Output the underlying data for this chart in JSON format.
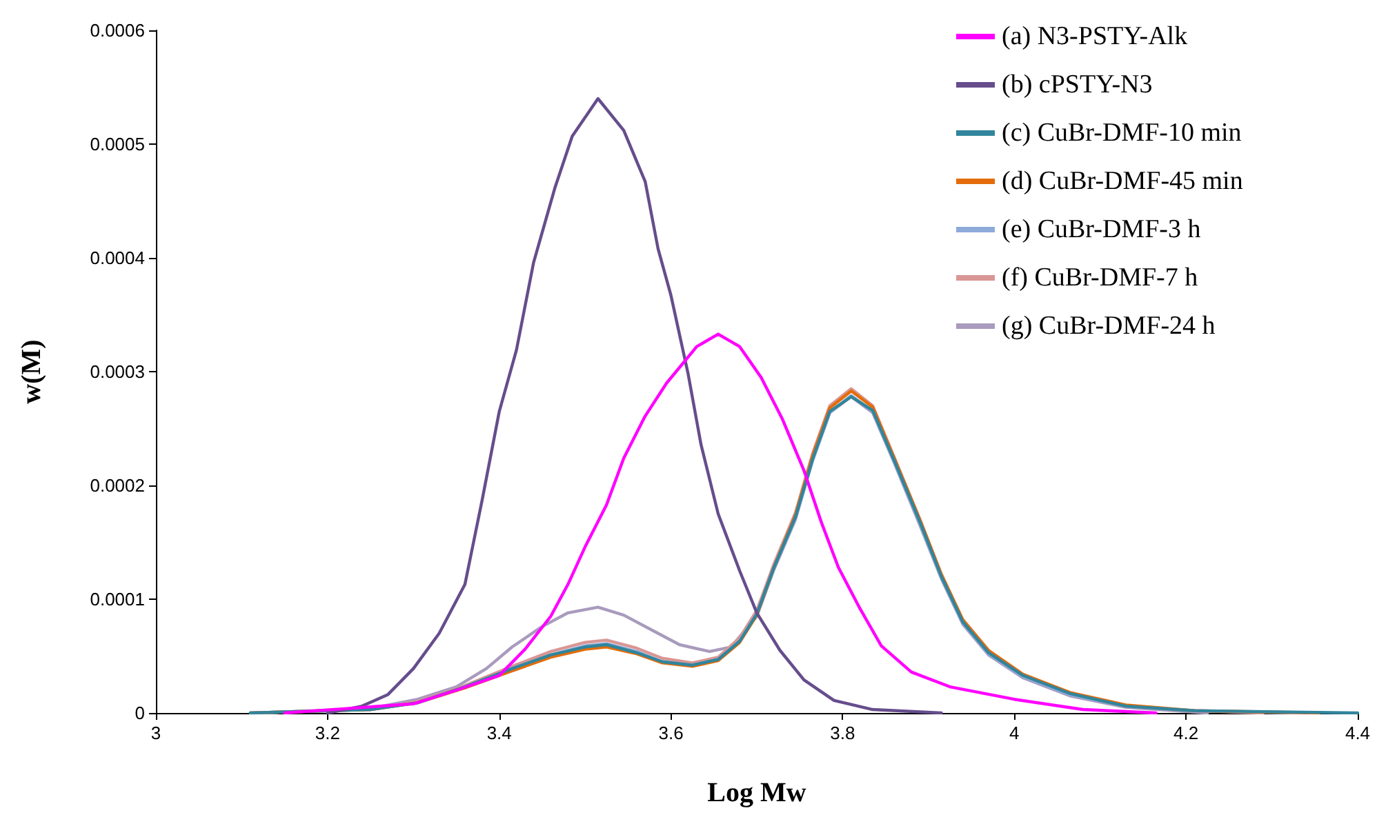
{
  "chart_data": {
    "type": "line",
    "xlabel": "Log Mw",
    "ylabel": "w(M)",
    "xlim": [
      3,
      4.4
    ],
    "xticks": [
      3,
      3.2,
      3.4,
      3.6,
      3.8,
      4,
      4.2,
      4.4
    ],
    "ylim": [
      0,
      0.0006
    ],
    "yticks": [
      0,
      0.0001,
      0.0002,
      0.0003,
      0.0004,
      0.0005,
      0.0006
    ],
    "grid": false,
    "legend": "top right",
    "marker": "none",
    "line_style": "solid",
    "series": [
      {
        "name": "(a) N3-PSTY-Alk",
        "color": "#ff00ff",
        "x": [
          3.15,
          3.3,
          3.35,
          3.4,
          3.43,
          3.46,
          3.48,
          3.5,
          3.525,
          3.545,
          3.57,
          3.595,
          3.63,
          3.655,
          3.68,
          3.705,
          3.73,
          3.755,
          3.775,
          3.795,
          3.82,
          3.845,
          3.88,
          3.925,
          4.0,
          4.08,
          4.165
        ],
        "values": [
          0,
          8e-06,
          2e-05,
          3.3e-05,
          5.6e-05,
          8.5e-05,
          0.000113,
          0.000146,
          0.000183,
          0.000224,
          0.000261,
          0.00029,
          0.000322,
          0.000333,
          0.000322,
          0.000295,
          0.000258,
          0.000213,
          0.000168,
          0.000128,
          9.2e-05,
          5.9e-05,
          3.6e-05,
          2.3e-05,
          1.2e-05,
          3e-06,
          0
        ]
      },
      {
        "name": "(b) cPSTY-N3",
        "color": "#664d8c",
        "x": [
          3.2,
          3.24,
          3.27,
          3.3,
          3.33,
          3.36,
          3.38,
          3.4,
          3.42,
          3.44,
          3.465,
          3.485,
          3.515,
          3.545,
          3.57,
          3.585,
          3.6,
          3.62,
          3.635,
          3.655,
          3.68,
          3.7,
          3.727,
          3.755,
          3.79,
          3.835,
          3.915
        ],
        "values": [
          0,
          6e-06,
          1.6e-05,
          3.9e-05,
          7e-05,
          0.000113,
          0.000187,
          0.000265,
          0.000319,
          0.000396,
          0.000462,
          0.000507,
          0.00054,
          0.000512,
          0.000467,
          0.000408,
          0.000367,
          0.000298,
          0.000236,
          0.000175,
          0.000125,
          8.8e-05,
          5.5e-05,
          2.9e-05,
          1.1e-05,
          3e-06,
          0
        ]
      },
      {
        "name": "(c) CuBr-DMF-10 min",
        "color": "#31859c",
        "x": [
          3.11,
          3.25,
          3.305,
          3.36,
          3.415,
          3.46,
          3.5,
          3.525,
          3.56,
          3.59,
          3.625,
          3.655,
          3.68,
          3.7,
          3.72,
          3.745,
          3.765,
          3.785,
          3.81,
          3.835,
          3.86,
          3.89,
          3.915,
          3.94,
          3.97,
          4.01,
          4.065,
          4.13,
          4.21,
          4.4
        ],
        "values": [
          0,
          3e-06,
          9e-06,
          2.3e-05,
          3.9e-05,
          5.1e-05,
          5.8e-05,
          6e-05,
          5.3e-05,
          4.5e-05,
          4.2e-05,
          4.7e-05,
          6.3e-05,
          8.7e-05,
          0.000128,
          0.000172,
          0.000223,
          0.000265,
          0.000278,
          0.000266,
          0.000222,
          0.000168,
          0.00012,
          8e-05,
          5.3e-05,
          3.3e-05,
          1.7e-05,
          6e-06,
          2e-06,
          0
        ]
      },
      {
        "name": "(d) CuBr-DMF-45 min",
        "color": "#e46c0a",
        "x": [
          3.11,
          3.25,
          3.305,
          3.36,
          3.415,
          3.46,
          3.5,
          3.525,
          3.56,
          3.59,
          3.625,
          3.655,
          3.68,
          3.7,
          3.72,
          3.745,
          3.765,
          3.785,
          3.81,
          3.835,
          3.86,
          3.89,
          3.915,
          3.94,
          3.97,
          4.01,
          4.065,
          4.13,
          4.21,
          4.355
        ],
        "values": [
          0,
          3e-06,
          9e-06,
          2.2e-05,
          3.7e-05,
          4.9e-05,
          5.6e-05,
          5.8e-05,
          5.2e-05,
          4.4e-05,
          4.1e-05,
          4.6e-05,
          6.2e-05,
          8.6e-05,
          0.000128,
          0.000174,
          0.000226,
          0.000268,
          0.000283,
          0.000269,
          0.000224,
          0.00017,
          0.000122,
          8.2e-05,
          5.5e-05,
          3.4e-05,
          1.8e-05,
          7e-06,
          2e-06,
          0
        ]
      },
      {
        "name": "(e) CuBr-DMF-3 h",
        "color": "#8eaadb",
        "x": [
          3.11,
          3.25,
          3.305,
          3.36,
          3.415,
          3.46,
          3.5,
          3.525,
          3.56,
          3.59,
          3.625,
          3.655,
          3.68,
          3.7,
          3.72,
          3.745,
          3.765,
          3.785,
          3.81,
          3.835,
          3.86,
          3.89,
          3.915,
          3.94,
          3.97,
          4.01,
          4.065,
          4.13,
          4.21,
          4.335
        ],
        "values": [
          0,
          3e-06,
          9e-06,
          2.3e-05,
          3.9e-05,
          5.1e-05,
          5.9e-05,
          6.1e-05,
          5.4e-05,
          4.5e-05,
          4.2e-05,
          4.7e-05,
          6.3e-05,
          8.7e-05,
          0.000127,
          0.000171,
          0.000222,
          0.000264,
          0.000279,
          0.000265,
          0.000221,
          0.000167,
          0.000119,
          7.9e-05,
          5.2e-05,
          3.2e-05,
          1.6e-05,
          6e-06,
          2e-06,
          0
        ]
      },
      {
        "name": "(f) CuBr-DMF-7 h",
        "color": "#d99694",
        "x": [
          3.11,
          3.25,
          3.305,
          3.36,
          3.415,
          3.46,
          3.5,
          3.525,
          3.56,
          3.59,
          3.625,
          3.655,
          3.68,
          3.7,
          3.72,
          3.745,
          3.765,
          3.785,
          3.81,
          3.835,
          3.86,
          3.89,
          3.915,
          3.94,
          3.97,
          4.01,
          4.065,
          4.13,
          4.21,
          4.29
        ],
        "values": [
          0,
          3e-06,
          1e-05,
          2.4e-05,
          4.1e-05,
          5.4e-05,
          6.2e-05,
          6.4e-05,
          5.7e-05,
          4.8e-05,
          4.4e-05,
          4.9e-05,
          6.6e-05,
          9e-05,
          0.000131,
          0.000176,
          0.000228,
          0.00027,
          0.000285,
          0.00027,
          0.000225,
          0.00017,
          0.000121,
          8.1e-05,
          5.4e-05,
          3.3e-05,
          1.7e-05,
          6e-06,
          2e-06,
          0
        ]
      },
      {
        "name": "(g) CuBr-DMF-24 h",
        "color": "#a99bbd",
        "x": [
          3.12,
          3.25,
          3.305,
          3.35,
          3.385,
          3.415,
          3.45,
          3.48,
          3.515,
          3.545,
          3.58,
          3.61,
          3.645,
          3.67,
          3.7,
          3.72,
          3.745,
          3.765,
          3.785,
          3.81,
          3.835,
          3.86,
          3.89,
          3.915,
          3.94,
          3.97,
          4.01,
          4.065,
          4.13,
          4.225
        ],
        "values": [
          0,
          4e-06,
          1.2e-05,
          2.3e-05,
          3.9e-05,
          5.8e-05,
          7.6e-05,
          8.8e-05,
          9.3e-05,
          8.6e-05,
          7.2e-05,
          6e-05,
          5.4e-05,
          5.8e-05,
          8.5e-05,
          0.000126,
          0.00017,
          0.000222,
          0.000264,
          0.000278,
          0.000264,
          0.00022,
          0.000165,
          0.000118,
          7.8e-05,
          5.1e-05,
          3.1e-05,
          1.5e-05,
          5e-06,
          0
        ]
      }
    ]
  }
}
